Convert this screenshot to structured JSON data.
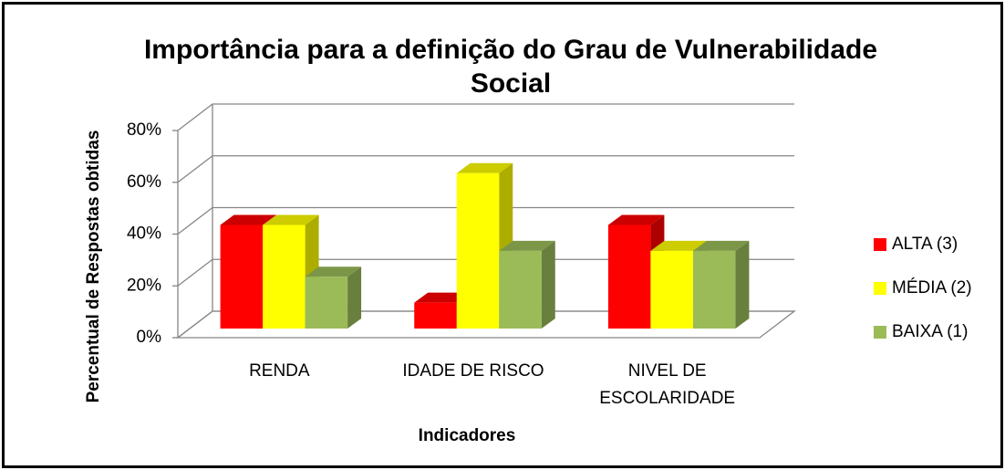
{
  "chart_data": {
    "type": "bar3d",
    "title": "Importância para a definição do Grau de Vulnerabilidade Social",
    "x_label": "Indicadores",
    "y_label": "Percentual de Respostas obtidas",
    "categories": [
      "RENDA",
      "IDADE DE RISCO",
      "NIVEL DE\nESCOLARIDADE"
    ],
    "series": [
      {
        "name": "ALTA (3)",
        "color": "#ff0000",
        "values": [
          40,
          10,
          40
        ]
      },
      {
        "name": "MÉDIA (2)",
        "color": "#ffff00",
        "values": [
          40,
          60,
          30
        ]
      },
      {
        "name": "BAIXA (1)",
        "color": "#9bbb59",
        "values": [
          20,
          30,
          30
        ]
      }
    ],
    "ylim": [
      0,
      80
    ],
    "yticks": [
      {
        "value": 0,
        "label": "0%"
      },
      {
        "value": 20,
        "label": "20%"
      },
      {
        "value": 40,
        "label": "40%"
      },
      {
        "value": 60,
        "label": "60%"
      },
      {
        "value": 80,
        "label": "80%"
      }
    ],
    "grid": true,
    "legend": "right"
  }
}
